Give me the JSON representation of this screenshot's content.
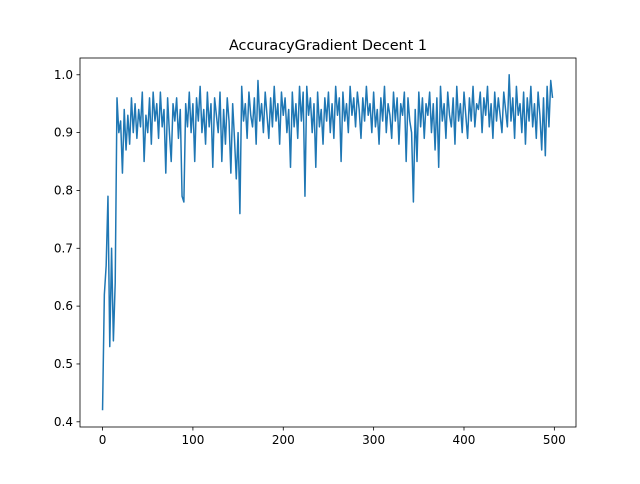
{
  "chart_data": {
    "type": "line",
    "title": "AccuracyGradient Decent 1",
    "x": [
      0,
      2,
      4,
      6,
      8,
      10,
      12,
      14,
      16,
      18,
      20,
      22,
      24,
      26,
      28,
      30,
      32,
      34,
      36,
      38,
      40,
      42,
      44,
      46,
      48,
      50,
      52,
      54,
      56,
      58,
      60,
      62,
      64,
      66,
      68,
      70,
      72,
      74,
      76,
      78,
      80,
      82,
      84,
      86,
      88,
      90,
      92,
      94,
      96,
      98,
      100,
      102,
      104,
      106,
      108,
      110,
      112,
      114,
      116,
      118,
      120,
      122,
      124,
      126,
      128,
      130,
      132,
      134,
      136,
      138,
      140,
      142,
      144,
      146,
      148,
      150,
      152,
      154,
      156,
      158,
      160,
      162,
      164,
      166,
      168,
      170,
      172,
      174,
      176,
      178,
      180,
      182,
      184,
      186,
      188,
      190,
      192,
      194,
      196,
      198,
      200,
      202,
      204,
      206,
      208,
      210,
      212,
      214,
      216,
      218,
      220,
      222,
      224,
      226,
      228,
      230,
      232,
      234,
      236,
      238,
      240,
      242,
      244,
      246,
      248,
      250,
      252,
      254,
      256,
      258,
      260,
      262,
      264,
      266,
      268,
      270,
      272,
      274,
      276,
      278,
      280,
      282,
      284,
      286,
      288,
      290,
      292,
      294,
      296,
      298,
      300,
      302,
      304,
      306,
      308,
      310,
      312,
      314,
      316,
      318,
      320,
      322,
      324,
      326,
      328,
      330,
      332,
      334,
      336,
      338,
      340,
      342,
      344,
      346,
      348,
      350,
      352,
      354,
      356,
      358,
      360,
      362,
      364,
      366,
      368,
      370,
      372,
      374,
      376,
      378,
      380,
      382,
      384,
      386,
      388,
      390,
      392,
      394,
      396,
      398,
      400,
      402,
      404,
      406,
      408,
      410,
      412,
      414,
      416,
      418,
      420,
      422,
      424,
      426,
      428,
      430,
      432,
      434,
      436,
      438,
      440,
      442,
      444,
      446,
      448,
      450,
      452,
      454,
      456,
      458,
      460,
      462,
      464,
      466,
      468,
      470,
      472,
      474,
      476,
      478,
      480,
      482,
      484,
      486,
      488,
      490,
      492,
      494,
      496,
      498
    ],
    "series": [
      {
        "color": "#1f77b4",
        "values": [
          0.42,
          0.62,
          0.67,
          0.79,
          0.53,
          0.7,
          0.54,
          0.64,
          0.96,
          0.9,
          0.92,
          0.83,
          0.94,
          0.87,
          0.93,
          0.88,
          0.96,
          0.9,
          0.95,
          0.89,
          0.94,
          0.91,
          0.97,
          0.85,
          0.93,
          0.9,
          0.96,
          0.88,
          0.97,
          0.92,
          0.95,
          0.89,
          0.97,
          0.91,
          0.94,
          0.83,
          0.96,
          0.9,
          0.85,
          0.95,
          0.92,
          0.96,
          0.89,
          0.94,
          0.79,
          0.78,
          0.95,
          0.91,
          0.97,
          0.9,
          0.95,
          0.85,
          0.96,
          0.92,
          0.98,
          0.9,
          0.94,
          0.88,
          0.97,
          0.91,
          0.95,
          0.84,
          0.96,
          0.93,
          0.9,
          0.97,
          0.85,
          0.94,
          0.88,
          0.96,
          0.92,
          0.83,
          0.95,
          0.89,
          0.82,
          0.9,
          0.76,
          0.98,
          0.92,
          0.95,
          0.89,
          0.97,
          0.93,
          0.91,
          0.96,
          0.88,
          0.99,
          0.92,
          0.95,
          0.9,
          0.97,
          0.93,
          0.89,
          0.96,
          0.91,
          0.98,
          0.92,
          0.95,
          0.88,
          0.97,
          0.93,
          0.96,
          0.9,
          0.94,
          0.84,
          0.97,
          0.91,
          0.95,
          0.89,
          0.98,
          0.92,
          0.97,
          0.79,
          0.98,
          0.93,
          0.96,
          0.9,
          0.95,
          0.84,
          0.97,
          0.91,
          0.94,
          0.88,
          0.96,
          0.92,
          0.97,
          0.9,
          0.95,
          0.89,
          0.98,
          0.93,
          0.96,
          0.85,
          0.97,
          0.92,
          0.95,
          0.9,
          0.98,
          0.93,
          0.96,
          0.91,
          0.97,
          0.94,
          0.89,
          0.96,
          0.92,
          0.98,
          0.93,
          0.95,
          0.9,
          0.97,
          0.91,
          0.94,
          0.88,
          0.96,
          0.92,
          0.98,
          0.9,
          0.95,
          0.93,
          0.89,
          0.97,
          0.92,
          0.96,
          0.88,
          0.95,
          0.93,
          0.97,
          0.85,
          0.96,
          0.92,
          0.9,
          0.78,
          0.94,
          0.85,
          0.97,
          0.91,
          0.96,
          0.89,
          0.95,
          0.93,
          0.97,
          0.9,
          0.95,
          0.87,
          0.96,
          0.84,
          0.98,
          0.92,
          0.95,
          0.89,
          0.97,
          0.93,
          0.91,
          0.96,
          0.88,
          0.98,
          0.92,
          0.95,
          0.9,
          0.97,
          0.93,
          0.89,
          0.96,
          0.92,
          0.98,
          0.91,
          0.95,
          0.94,
          0.97,
          0.9,
          0.96,
          0.93,
          0.98,
          0.91,
          0.95,
          0.89,
          0.97,
          0.92,
          0.96,
          0.93,
          0.9,
          0.97,
          0.94,
          0.91,
          1.0,
          0.92,
          0.96,
          0.89,
          0.98,
          0.93,
          0.95,
          0.9,
          0.97,
          0.88,
          0.96,
          0.92,
          0.98,
          0.91,
          0.95,
          0.89,
          0.97,
          0.93,
          0.87,
          0.96,
          0.86,
          0.98,
          0.91,
          0.99,
          0.96
        ]
      }
    ],
    "xlim": [
      -24.95,
      523.95
    ],
    "xticks": [
      0,
      100,
      200,
      300,
      400,
      500
    ],
    "ylim": [
      0.391,
      1.029
    ],
    "yticks": [
      0.4,
      0.5,
      0.6,
      0.7,
      0.8,
      0.9,
      {
        "value": 1,
        "label": "1.0"
      }
    ]
  }
}
